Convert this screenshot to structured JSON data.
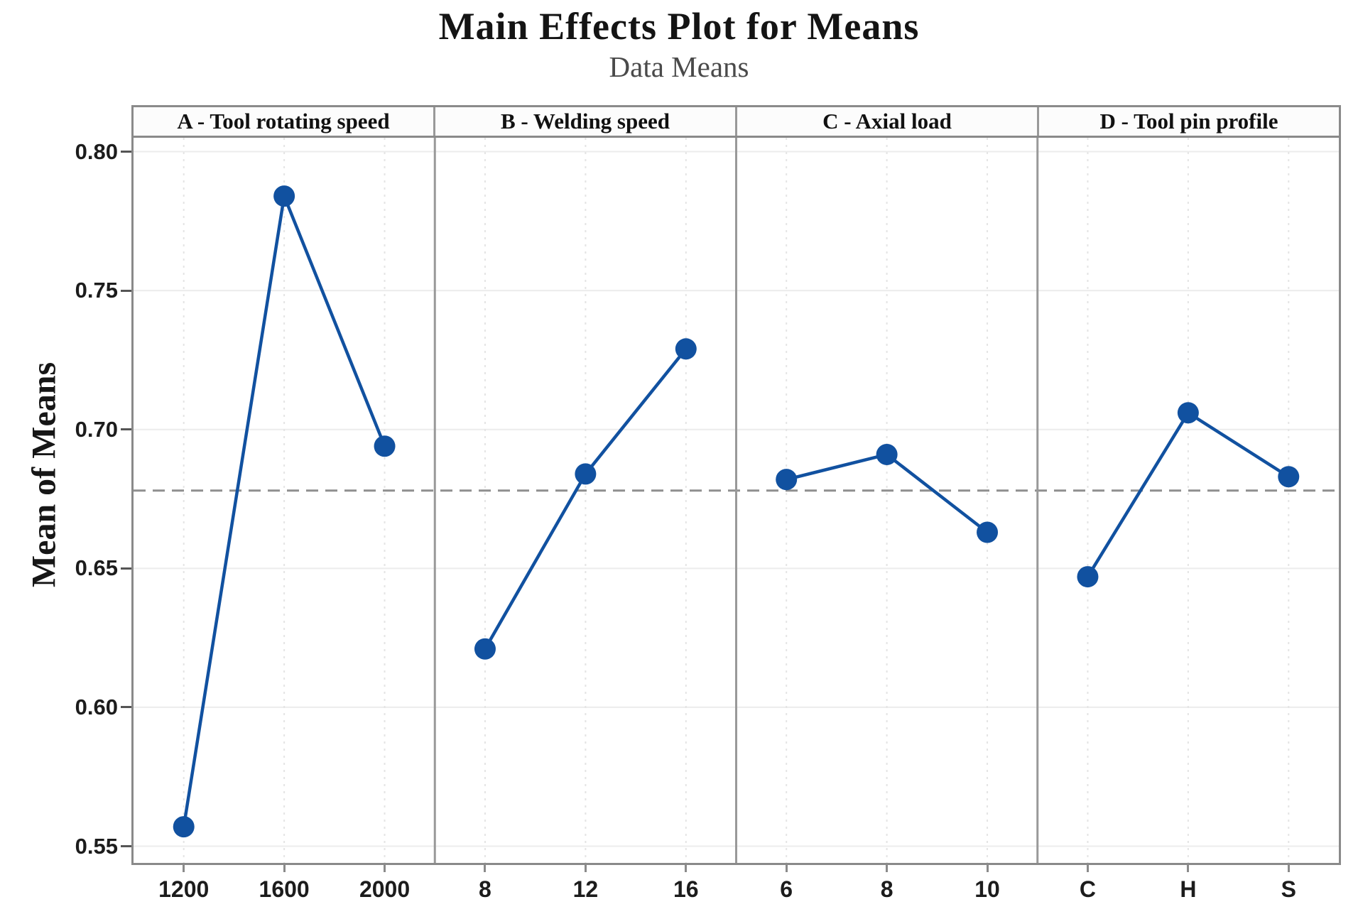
{
  "title": "Main Effects Plot for Means",
  "subtitle": "Data Means",
  "ylabel": "Mean of Means",
  "colors": {
    "series": "#1151a0",
    "mean_line": "#8f8f8f",
    "frame": "#8a8a8a",
    "separator": "#999999",
    "grid_horizontal": "#ececec",
    "grid_vertical": "#e4e4e4",
    "tick": "#555555",
    "title_text": "#141414",
    "subtitle_text": "#4a4a4a",
    "header_bg": "#fcfcfc"
  },
  "y_axis": {
    "tick_labels": [
      "0.80",
      "0.75",
      "0.70",
      "0.65",
      "0.60",
      "0.55"
    ]
  },
  "chart_data": {
    "type": "line",
    "title": "Main Effects Plot for Means",
    "subtitle": "Data Means",
    "ylabel": "Mean of Means",
    "ylim": [
      0.544,
      0.805
    ],
    "yticks": [
      0.8,
      0.75,
      0.7,
      0.65,
      0.6,
      0.55
    ],
    "grand_mean": 0.678,
    "grid": true,
    "legend_position": "none",
    "panels": [
      {
        "label": "A - Tool rotating speed",
        "categories": [
          "1200",
          "1600",
          "2000"
        ],
        "values": [
          0.557,
          0.784,
          0.694
        ]
      },
      {
        "label": "B - Welding speed",
        "categories": [
          "8",
          "12",
          "16"
        ],
        "values": [
          0.621,
          0.684,
          0.729
        ]
      },
      {
        "label": "C - Axial load",
        "categories": [
          "6",
          "8",
          "10"
        ],
        "values": [
          0.682,
          0.691,
          0.663
        ]
      },
      {
        "label": "D - Tool pin profile",
        "categories": [
          "C",
          "H",
          "S"
        ],
        "values": [
          0.647,
          0.706,
          0.683
        ]
      }
    ]
  }
}
